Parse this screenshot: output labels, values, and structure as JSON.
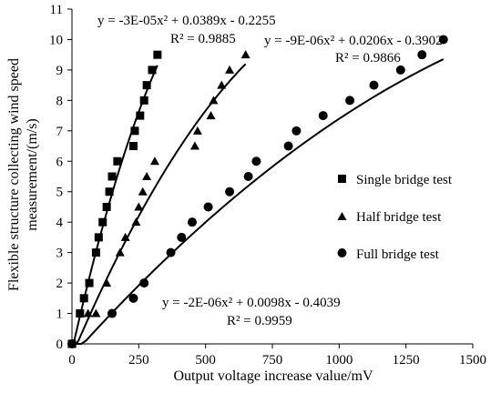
{
  "chart_data": {
    "type": "scatter",
    "title": "",
    "xlabel": "Output voltage increase value/mV",
    "ylabel_lines": [
      "Flexible structure collecting wind speed",
      "measurement/(m/s)"
    ],
    "xlim": [
      0,
      1500
    ],
    "ylim": [
      0,
      11
    ],
    "x_ticks": [
      0,
      250,
      500,
      750,
      1000,
      1250,
      1500
    ],
    "y_ticks": [
      0,
      1,
      2,
      3,
      4,
      5,
      6,
      7,
      8,
      9,
      10,
      11
    ],
    "grid": false,
    "legend_position": "right",
    "series": [
      {
        "name": "Single bridge test",
        "marker": "square",
        "trend": {
          "a": -3e-05,
          "b": 0.0389,
          "c": -0.2255,
          "x_range": [
            0,
            320
          ]
        },
        "equation": "y = -3E-05x² + 0.0389x - 0.2255",
        "r2": "R² = 0.9885",
        "points": [
          [
            0,
            0
          ],
          [
            30,
            1
          ],
          [
            45,
            1.5
          ],
          [
            65,
            2
          ],
          [
            90,
            3
          ],
          [
            100,
            3.5
          ],
          [
            115,
            4
          ],
          [
            130,
            4.5
          ],
          [
            140,
            5
          ],
          [
            150,
            5.5
          ],
          [
            170,
            6
          ],
          [
            230,
            6.5
          ],
          [
            235,
            7
          ],
          [
            255,
            7.5
          ],
          [
            270,
            8
          ],
          [
            280,
            8.5
          ],
          [
            300,
            9
          ],
          [
            320,
            9.5
          ]
        ]
      },
      {
        "name": "Half bridge test",
        "marker": "triangle",
        "trend": {
          "a": -9e-06,
          "b": 0.0206,
          "c": -0.3902,
          "x_range": [
            0,
            650
          ]
        },
        "equation": "y = -9E-06x² + 0.0206x - 0.3902",
        "r2": "R² = 0.9866",
        "points": [
          [
            0,
            0
          ],
          [
            60,
            1
          ],
          [
            90,
            1
          ],
          [
            130,
            2
          ],
          [
            180,
            3
          ],
          [
            200,
            3.5
          ],
          [
            240,
            4
          ],
          [
            250,
            4.5
          ],
          [
            265,
            5
          ],
          [
            280,
            5.5
          ],
          [
            310,
            6
          ],
          [
            460,
            6.5
          ],
          [
            470,
            7
          ],
          [
            520,
            7.5
          ],
          [
            530,
            8
          ],
          [
            560,
            8.5
          ],
          [
            590,
            9
          ],
          [
            650,
            9.5
          ]
        ]
      },
      {
        "name": "Full bridge test",
        "marker": "circle",
        "trend": {
          "a": -2e-06,
          "b": 0.0098,
          "c": -0.4039,
          "x_range": [
            0,
            1390
          ]
        },
        "equation": "y = -2E-06x² + 0.0098x - 0.4039",
        "r2": "R² = 0.9959",
        "points": [
          [
            0,
            0
          ],
          [
            150,
            1
          ],
          [
            230,
            1.5
          ],
          [
            270,
            2
          ],
          [
            370,
            3
          ],
          [
            410,
            3.5
          ],
          [
            450,
            4
          ],
          [
            510,
            4.5
          ],
          [
            590,
            5
          ],
          [
            660,
            5.5
          ],
          [
            690,
            6
          ],
          [
            810,
            6.5
          ],
          [
            840,
            7
          ],
          [
            940,
            7.5
          ],
          [
            1040,
            8
          ],
          [
            1130,
            8.5
          ],
          [
            1230,
            9
          ],
          [
            1310,
            9.5
          ],
          [
            1390,
            10
          ]
        ]
      }
    ]
  }
}
